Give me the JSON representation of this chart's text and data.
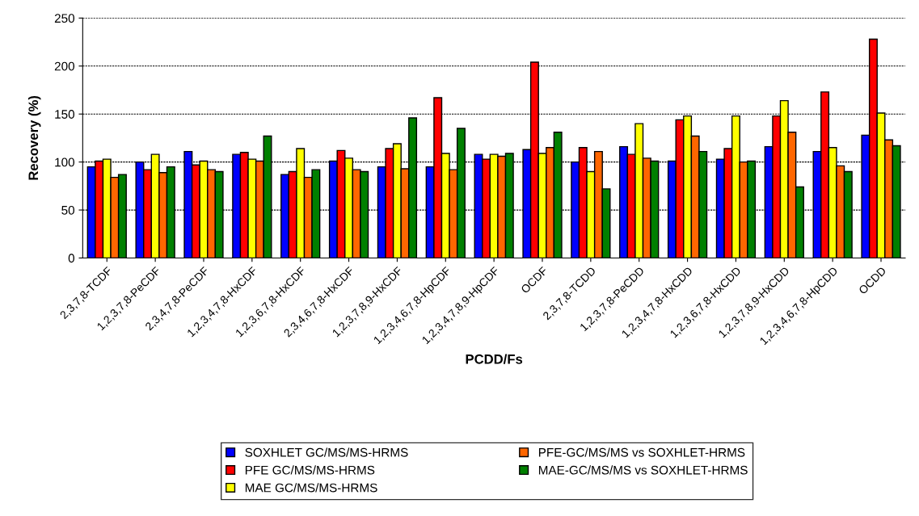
{
  "chart_data": {
    "type": "bar",
    "xlabel": "PCDD/Fs",
    "ylabel": "Recovery (%)",
    "categories": [
      "2,3,7,8-TCDF",
      "1,2,3,7,8-PeCDF",
      "2,3,4,7,8-PeCDF",
      "1,2,3,4,7,8-HxCDF",
      "1,2,3,6,7,8-HxCDF",
      "2,3,4,6,7,8-HxCDF",
      "1,2,3,7,8,9-HxCDF",
      "1,2,3,4,6,7,8-HpCDF",
      "1,2,3,4,7,8,9-HpCDF",
      "OCDF",
      "2,3,7,8-TCDD",
      "1,2,3,7,8-PeCDD",
      "1,2,3,4,7,8-HxCDD",
      "1,2,3,6,7,8-HxCDD",
      "1,2,3,7,8,9-HxCDD",
      "1,2,3,4,6,7,8-HpCDD",
      "OCDD"
    ],
    "series": [
      {
        "name": "SOXHLET GC/MS/MS-HRMS",
        "color": "#0000ff",
        "values": [
          95,
          100,
          111,
          108,
          87,
          101,
          95,
          95,
          108,
          113,
          100,
          116,
          101,
          103,
          116,
          111,
          128
        ]
      },
      {
        "name": "PFE GC/MS/MS-HRMS",
        "color": "#ff0000",
        "values": [
          101,
          92,
          97,
          110,
          90,
          112,
          114,
          167,
          103,
          204,
          115,
          108,
          144,
          114,
          148,
          173,
          228
        ]
      },
      {
        "name": "MAE GC/MS/MS-HRMS",
        "color": "#ffff00",
        "values": [
          103,
          108,
          101,
          103,
          114,
          104,
          119,
          109,
          108,
          109,
          90,
          140,
          148,
          148,
          164,
          115,
          151
        ]
      },
      {
        "name": "PFE-GC/MS/MS vs SOXHLET-HRMS",
        "color": "#ff6600",
        "values": [
          84,
          89,
          92,
          101,
          84,
          92,
          93,
          92,
          106,
          115,
          111,
          104,
          127,
          100,
          131,
          96,
          123
        ]
      },
      {
        "name": "MAE-GC/MS/MS vs SOXHLET-HRMS",
        "color": "#008000",
        "values": [
          87,
          95,
          90,
          127,
          92,
          90,
          146,
          135,
          109,
          131,
          72,
          101,
          111,
          101,
          74,
          90,
          117
        ]
      }
    ],
    "ylim": [
      0,
      250
    ],
    "yticks": [
      0,
      50,
      100,
      150,
      200,
      250
    ],
    "grid": "y",
    "legend": "bottom"
  }
}
